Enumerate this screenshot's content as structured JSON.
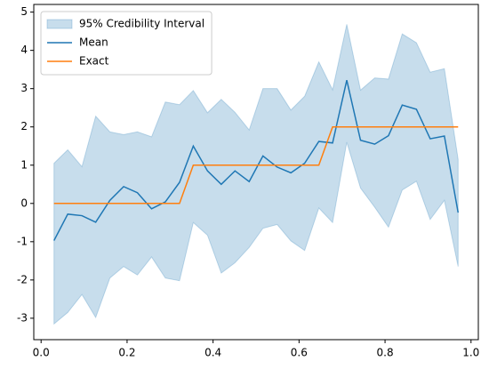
{
  "chart_data": {
    "type": "line",
    "x": [
      0.03,
      0.062,
      0.095,
      0.127,
      0.16,
      0.192,
      0.224,
      0.257,
      0.289,
      0.322,
      0.354,
      0.387,
      0.419,
      0.451,
      0.484,
      0.516,
      0.549,
      0.581,
      0.613,
      0.646,
      0.678,
      0.711,
      0.743,
      0.776,
      0.808,
      0.84,
      0.873,
      0.905,
      0.938,
      0.97
    ],
    "band": {
      "name": "95% Credibility Interval",
      "color": "#1f77b4",
      "alpha": 0.25,
      "lower": [
        -3.15,
        -2.85,
        -2.38,
        -2.98,
        -1.95,
        -1.65,
        -1.87,
        -1.4,
        -1.95,
        -2.02,
        -0.5,
        -0.83,
        -1.82,
        -1.55,
        -1.15,
        -0.65,
        -0.55,
        -0.98,
        -1.23,
        -0.12,
        -0.5,
        1.6,
        0.4,
        -0.1,
        -0.62,
        0.35,
        0.58,
        -0.42,
        0.08,
        -1.65
      ],
      "upper": [
        1.05,
        1.4,
        0.96,
        2.28,
        1.87,
        1.8,
        1.87,
        1.74,
        2.65,
        2.58,
        2.95,
        2.37,
        2.72,
        2.38,
        1.92,
        3.0,
        3.0,
        2.44,
        2.8,
        3.7,
        2.97,
        4.68,
        2.96,
        3.28,
        3.25,
        4.43,
        4.2,
        3.43,
        3.52,
        1.15
      ]
    },
    "series": [
      {
        "name": "Mean",
        "color": "#1f77b4",
        "values": [
          -0.97,
          -0.28,
          -0.32,
          -0.49,
          0.08,
          0.44,
          0.28,
          -0.14,
          0.04,
          0.55,
          1.5,
          0.85,
          0.5,
          0.85,
          0.57,
          1.24,
          0.95,
          0.8,
          1.05,
          1.62,
          1.58,
          3.22,
          1.65,
          1.55,
          1.77,
          2.57,
          2.46,
          1.69,
          1.76,
          -0.24
        ]
      },
      {
        "name": "Exact",
        "color": "#ff7f0e",
        "values": [
          0,
          0,
          0,
          0,
          0,
          0,
          0,
          0,
          0,
          0,
          1,
          1,
          1,
          1,
          1,
          1,
          1,
          1,
          1,
          1,
          2,
          2,
          2,
          2,
          2,
          2,
          2,
          2,
          2,
          2
        ]
      }
    ],
    "xlim": [
      -0.017,
      1.017
    ],
    "ylim": [
      -3.56,
      5.2
    ],
    "xticks": [
      {
        "value": 0,
        "label": "0.0"
      },
      {
        "value": 0.2,
        "label": "0.2"
      },
      {
        "value": 0.4,
        "label": "0.4"
      },
      {
        "value": 0.6,
        "label": "0.6"
      },
      {
        "value": 0.8,
        "label": "0.8"
      },
      {
        "value": 1,
        "label": "1.0"
      }
    ],
    "yticks": [
      -3,
      -2,
      -1,
      0,
      1,
      2,
      3,
      4,
      5
    ],
    "grid": false,
    "legend": "upper left"
  }
}
